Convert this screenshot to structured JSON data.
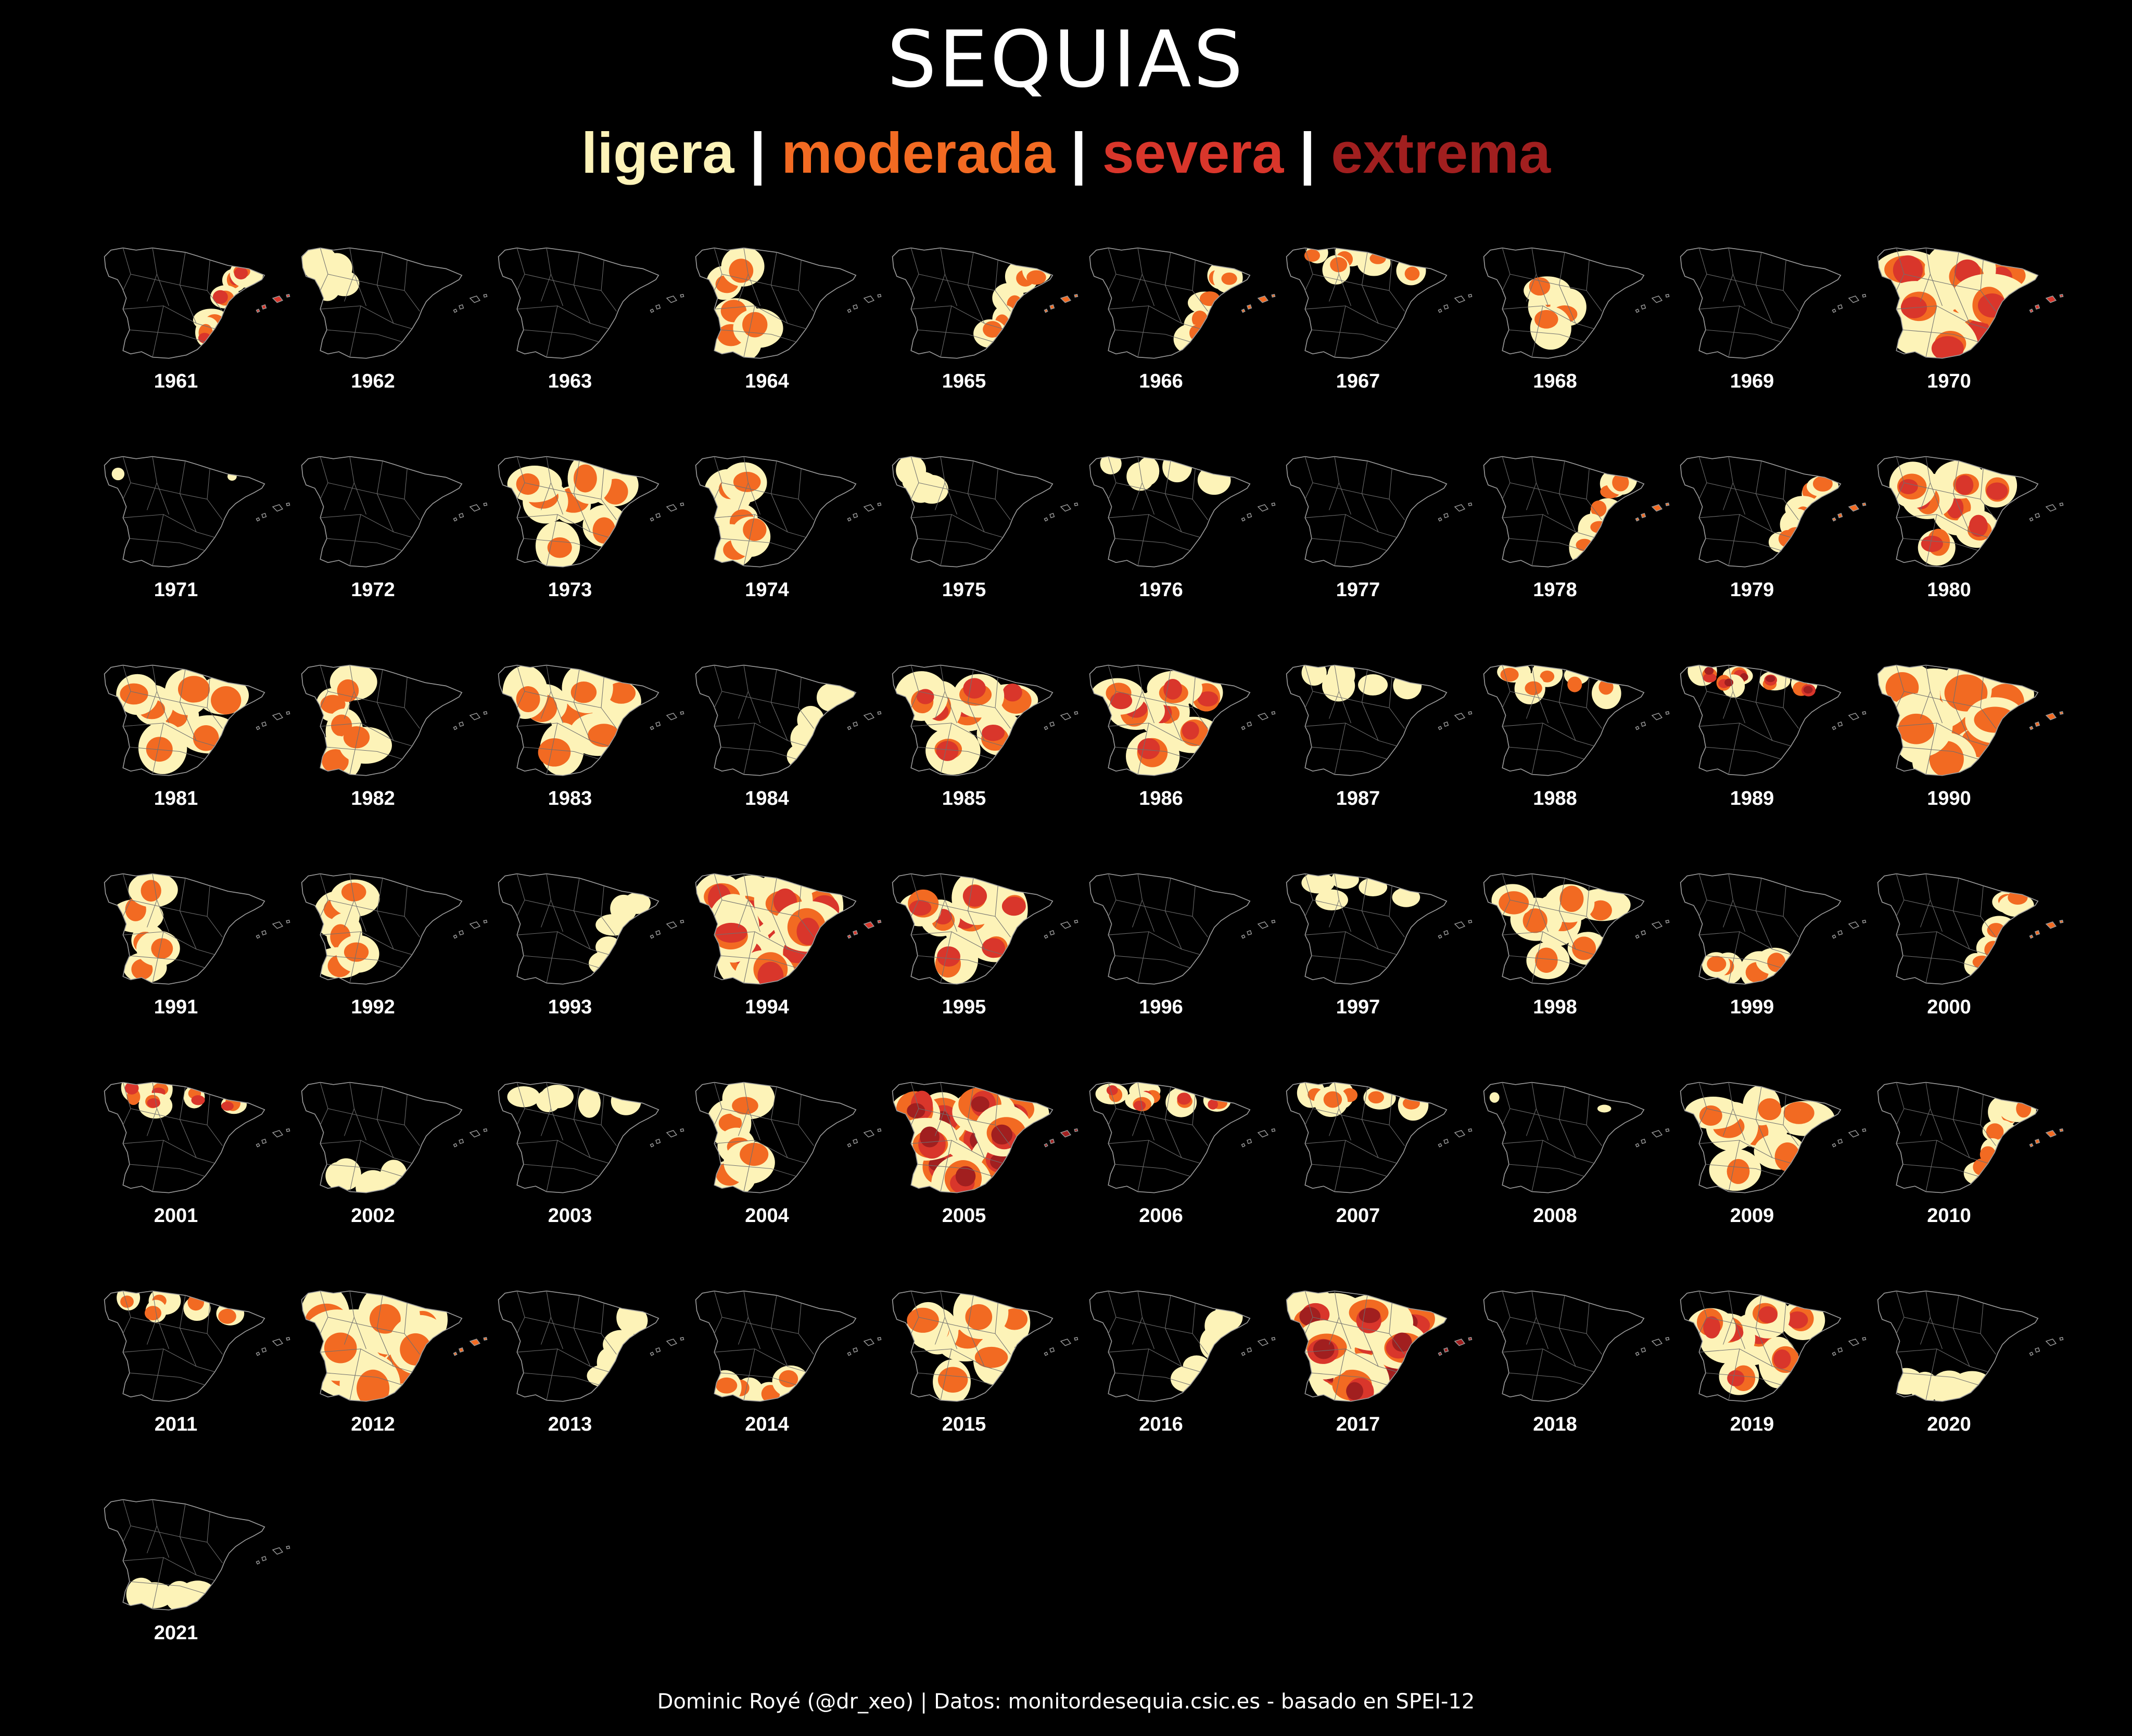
{
  "title": "SEQUIAS",
  "legend": [
    {
      "label": "ligera",
      "color": "#fdf3b8"
    },
    {
      "label": "moderada",
      "color": "#f26a22"
    },
    {
      "label": "severa",
      "color": "#d9362b"
    },
    {
      "label": "extrema",
      "color": "#a11f1f"
    }
  ],
  "legend_separator": "|",
  "caption": "Dominic Royé (@dr_xeo) | Datos: monitordesequia.csic.es - basado en SPEI-12",
  "map_data": {
    "region": "Península Ibérica (España) + Baleares",
    "index": "SPEI-12",
    "categories": [
      "ligera",
      "moderada",
      "severa",
      "extrema"
    ],
    "years": [
      {
        "year": "1961",
        "level": 3,
        "extent": "east"
      },
      {
        "year": "1962",
        "level": 1,
        "extent": "northwest"
      },
      {
        "year": "1963",
        "level": 0,
        "extent": "none"
      },
      {
        "year": "1964",
        "level": 2,
        "extent": "west"
      },
      {
        "year": "1965",
        "level": 2,
        "extent": "east"
      },
      {
        "year": "1966",
        "level": 2,
        "extent": "east"
      },
      {
        "year": "1967",
        "level": 2,
        "extent": "north"
      },
      {
        "year": "1968",
        "level": 2,
        "extent": "center"
      },
      {
        "year": "1969",
        "level": 0,
        "extent": "none"
      },
      {
        "year": "1970",
        "level": 3,
        "extent": "all"
      },
      {
        "year": "1971",
        "level": 1,
        "extent": "trace"
      },
      {
        "year": "1972",
        "level": 0,
        "extent": "none"
      },
      {
        "year": "1973",
        "level": 2,
        "extent": "most"
      },
      {
        "year": "1974",
        "level": 2,
        "extent": "west"
      },
      {
        "year": "1975",
        "level": 1,
        "extent": "northwest"
      },
      {
        "year": "1976",
        "level": 1,
        "extent": "north"
      },
      {
        "year": "1977",
        "level": 0,
        "extent": "none"
      },
      {
        "year": "1978",
        "level": 2,
        "extent": "east"
      },
      {
        "year": "1979",
        "level": 2,
        "extent": "east"
      },
      {
        "year": "1980",
        "level": 3,
        "extent": "most"
      },
      {
        "year": "1981",
        "level": 2,
        "extent": "most"
      },
      {
        "year": "1982",
        "level": 2,
        "extent": "west"
      },
      {
        "year": "1983",
        "level": 2,
        "extent": "most"
      },
      {
        "year": "1984",
        "level": 1,
        "extent": "east"
      },
      {
        "year": "1985",
        "level": 3,
        "extent": "most"
      },
      {
        "year": "1986",
        "level": 3,
        "extent": "most"
      },
      {
        "year": "1987",
        "level": 1,
        "extent": "north"
      },
      {
        "year": "1988",
        "level": 2,
        "extent": "north"
      },
      {
        "year": "1989",
        "level": 4,
        "extent": "north"
      },
      {
        "year": "1990",
        "level": 2,
        "extent": "all"
      },
      {
        "year": "1991",
        "level": 2,
        "extent": "west"
      },
      {
        "year": "1992",
        "level": 2,
        "extent": "west"
      },
      {
        "year": "1993",
        "level": 1,
        "extent": "east"
      },
      {
        "year": "1994",
        "level": 3,
        "extent": "all"
      },
      {
        "year": "1995",
        "level": 3,
        "extent": "most"
      },
      {
        "year": "1996",
        "level": 0,
        "extent": "none"
      },
      {
        "year": "1997",
        "level": 1,
        "extent": "north"
      },
      {
        "year": "1998",
        "level": 2,
        "extent": "most"
      },
      {
        "year": "1999",
        "level": 2,
        "extent": "south"
      },
      {
        "year": "2000",
        "level": 2,
        "extent": "east"
      },
      {
        "year": "2001",
        "level": 3,
        "extent": "north"
      },
      {
        "year": "2002",
        "level": 1,
        "extent": "south"
      },
      {
        "year": "2003",
        "level": 1,
        "extent": "north"
      },
      {
        "year": "2004",
        "level": 2,
        "extent": "west"
      },
      {
        "year": "2005",
        "level": 4,
        "extent": "all"
      },
      {
        "year": "2006",
        "level": 3,
        "extent": "north"
      },
      {
        "year": "2007",
        "level": 2,
        "extent": "north"
      },
      {
        "year": "2008",
        "level": 1,
        "extent": "trace"
      },
      {
        "year": "2009",
        "level": 2,
        "extent": "most"
      },
      {
        "year": "2010",
        "level": 2,
        "extent": "east"
      },
      {
        "year": "2011",
        "level": 2,
        "extent": "north"
      },
      {
        "year": "2012",
        "level": 2,
        "extent": "all"
      },
      {
        "year": "2013",
        "level": 1,
        "extent": "east"
      },
      {
        "year": "2014",
        "level": 2,
        "extent": "south"
      },
      {
        "year": "2015",
        "level": 2,
        "extent": "most"
      },
      {
        "year": "2016",
        "level": 1,
        "extent": "east"
      },
      {
        "year": "2017",
        "level": 4,
        "extent": "all"
      },
      {
        "year": "2018",
        "level": 0,
        "extent": "none"
      },
      {
        "year": "2019",
        "level": 3,
        "extent": "most"
      },
      {
        "year": "2020",
        "level": 1,
        "extent": "south"
      },
      {
        "year": "2021",
        "level": 1,
        "extent": "south"
      }
    ]
  }
}
